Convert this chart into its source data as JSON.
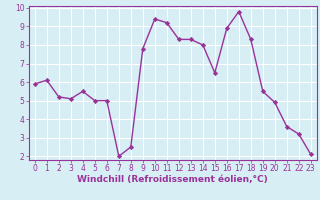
{
  "x": [
    0,
    1,
    2,
    3,
    4,
    5,
    6,
    7,
    8,
    9,
    10,
    11,
    12,
    13,
    14,
    15,
    16,
    17,
    18,
    19,
    20,
    21,
    22,
    23
  ],
  "y": [
    5.9,
    6.1,
    5.2,
    5.1,
    5.5,
    5.0,
    5.0,
    2.0,
    2.5,
    7.8,
    9.4,
    9.2,
    8.3,
    8.3,
    8.0,
    6.5,
    8.9,
    9.8,
    8.3,
    5.5,
    4.9,
    3.6,
    3.2,
    2.1
  ],
  "line_color": "#993399",
  "marker": "D",
  "marker_size": 2.2,
  "linewidth": 1.0,
  "bg_color": "#d7eef4",
  "grid_color": "#ffffff",
  "xlabel": "Windchill (Refroidissement éolien,°C)",
  "xlabel_color": "#993399",
  "tick_color": "#993399",
  "spine_color": "#993399",
  "ylim": [
    1.8,
    10.1
  ],
  "xlim": [
    -0.5,
    23.5
  ],
  "yticks": [
    2,
    3,
    4,
    5,
    6,
    7,
    8,
    9,
    10
  ],
  "xticks": [
    0,
    1,
    2,
    3,
    4,
    5,
    6,
    7,
    8,
    9,
    10,
    11,
    12,
    13,
    14,
    15,
    16,
    17,
    18,
    19,
    20,
    21,
    22,
    23
  ],
  "tick_fontsize": 5.5,
  "xlabel_fontsize": 6.5
}
